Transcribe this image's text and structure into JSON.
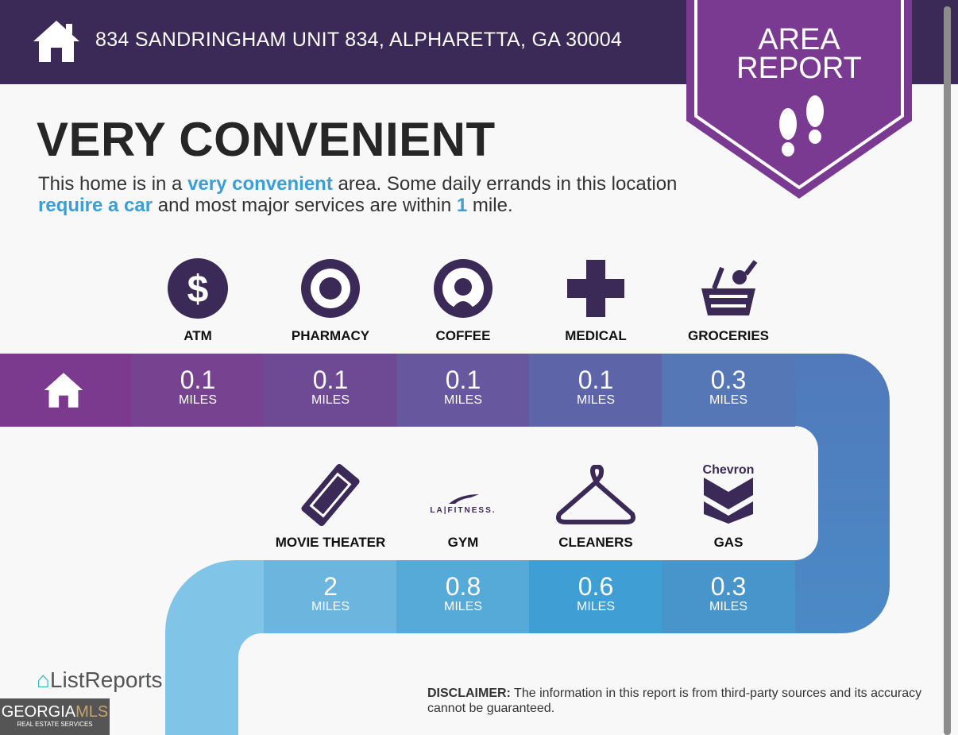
{
  "header": {
    "address": "834 SANDRINGHAM UNIT 834, ALPHARETTA, GA 30004",
    "home_icon": "home-icon"
  },
  "badge": {
    "line1": "AREA",
    "line2": "REPORT",
    "icon": "footprints-icon",
    "color": "#7b3a91"
  },
  "title": "VERY CONVENIENT",
  "description": {
    "p1": "This home is in a ",
    "h1": "very convenient",
    "p2": " area. Some daily errands in this location ",
    "h2": "require a car",
    "p3": " and most major services are within ",
    "h3": "1",
    "p4": " mile."
  },
  "unit": "MILES",
  "row1": [
    {
      "label": "ATM",
      "value": "0.1",
      "icon": "dollar-icon",
      "color": "#77428f"
    },
    {
      "label": "PHARMACY",
      "value": "0.1",
      "icon": "target-icon",
      "color": "#6f4a94"
    },
    {
      "label": "COFFEE",
      "value": "0.1",
      "icon": "starbucks-icon",
      "color": "#66579e"
    },
    {
      "label": "MEDICAL",
      "value": "0.1",
      "icon": "medical-cross-icon",
      "color": "#5e64a8"
    },
    {
      "label": "GROCERIES",
      "value": "0.3",
      "icon": "basket-icon",
      "color": "#5577b6"
    }
  ],
  "row2": [
    {
      "label": "MOVIE THEATER",
      "value": "2",
      "icon": "ticket-icon",
      "color": "#6bb5df"
    },
    {
      "label": "GYM",
      "value": "0.8",
      "icon": "la-fitness-logo",
      "logo_text": "LA|FITNESS.",
      "color": "#55aad8"
    },
    {
      "label": "CLEANERS",
      "value": "0.6",
      "icon": "hanger-icon",
      "color": "#3f9fd4"
    },
    {
      "label": "GAS",
      "value": "0.3",
      "icon": "chevron-logo",
      "logo_text": "Chevron",
      "color": "#4895cc"
    }
  ],
  "footer": {
    "brand": "ListReports",
    "disclaimer_label": "DISCLAIMER:",
    "disclaimer": " The information in this report is from third-party sources and its accuracy cannot be guaranteed.",
    "mls": "GEORGIA",
    "mls2": "MLS",
    "mls_sub": "REAL ESTATE SERVICES"
  }
}
